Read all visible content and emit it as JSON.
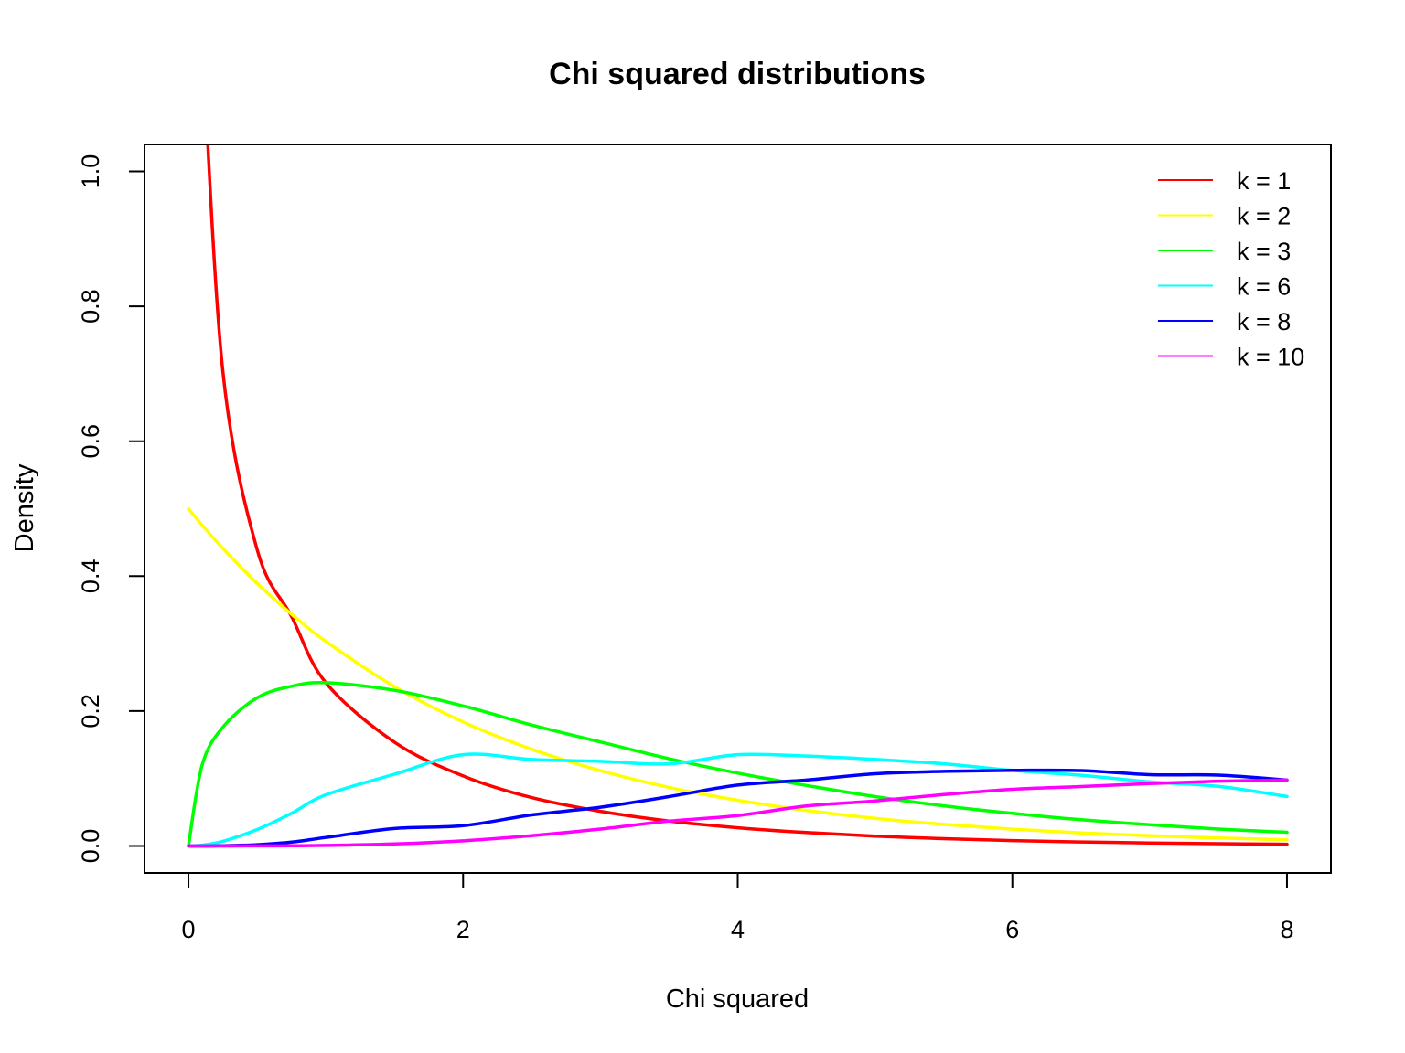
{
  "chart_data": {
    "type": "line",
    "title": "Chi squared distributions",
    "xlabel": "Chi squared",
    "ylabel": "Density",
    "xlim": [
      -0.32,
      8.32
    ],
    "ylim": [
      -0.04,
      1.04
    ],
    "x_ticks": [
      0,
      2,
      4,
      6,
      8
    ],
    "y_ticks": [
      0.0,
      0.2,
      0.4,
      0.6,
      0.8,
      1.0
    ],
    "x_tick_labels": [
      "0",
      "2",
      "4",
      "6",
      "8"
    ],
    "y_tick_labels": [
      "0.0",
      "0.2",
      "0.4",
      "0.6",
      "0.8",
      "1.0"
    ],
    "grid": false,
    "legend_position": "top-right",
    "x": [
      0.0,
      0.1,
      0.25,
      0.5,
      0.75,
      1.0,
      1.5,
      2.0,
      2.5,
      3.0,
      3.5,
      4.0,
      4.5,
      5.0,
      5.5,
      6.0,
      6.5,
      7.0,
      7.5,
      8.0
    ],
    "series": [
      {
        "name": "k = 1",
        "color": "#ff0000",
        "values": [
          null,
          1.2,
          0.7041,
          0.4394,
          0.3405,
          0.242,
          0.1539,
          0.1038,
          0.0716,
          0.0514,
          0.037,
          0.027,
          0.0199,
          0.0146,
          0.0108,
          0.008,
          0.006,
          0.0045,
          0.0033,
          0.0025
        ]
      },
      {
        "name": "k = 2",
        "color": "#ffff00",
        "values": [
          0.5,
          0.4756,
          0.4412,
          0.3894,
          0.3437,
          0.3033,
          0.2362,
          0.1839,
          0.1433,
          0.1116,
          0.0869,
          0.0677,
          0.0527,
          0.041,
          0.032,
          0.0249,
          0.0194,
          0.0151,
          0.0118,
          0.0092
        ]
      },
      {
        "name": "k = 3",
        "color": "#00ff00",
        "values": [
          0.0,
          0.12,
          0.176,
          0.2197,
          0.2367,
          0.242,
          0.2308,
          0.2076,
          0.1792,
          0.1542,
          0.1293,
          0.108,
          0.0897,
          0.0732,
          0.0594,
          0.0483,
          0.0388,
          0.0314,
          0.0251,
          0.0203
        ]
      },
      {
        "name": "k = 6",
        "color": "#00ffff",
        "values": [
          0.0,
          0.0012,
          0.0069,
          0.0243,
          0.0483,
          0.0758,
          0.1063,
          0.1353,
          0.1282,
          0.1255,
          0.1216,
          0.1353,
          0.1333,
          0.1283,
          0.1218,
          0.112,
          0.1048,
          0.0951,
          0.0883,
          0.0733
        ]
      },
      {
        "name": "k = 8",
        "color": "#0000ff",
        "values": [
          0.0,
          0.0,
          0.0003,
          0.0019,
          0.0056,
          0.0126,
          0.0258,
          0.03,
          0.046,
          0.0574,
          0.0731,
          0.0902,
          0.0977,
          0.107,
          0.1105,
          0.112,
          0.1118,
          0.1057,
          0.105,
          0.0977
        ]
      },
      {
        "name": "k = 10",
        "color": "#ff00ff",
        "values": [
          0.0,
          0.0,
          0.0,
          0.0001,
          0.0003,
          0.0008,
          0.0029,
          0.0076,
          0.0152,
          0.0251,
          0.0368,
          0.0451,
          0.0592,
          0.0668,
          0.0761,
          0.084,
          0.088,
          0.0925,
          0.096,
          0.0977
        ]
      }
    ]
  }
}
